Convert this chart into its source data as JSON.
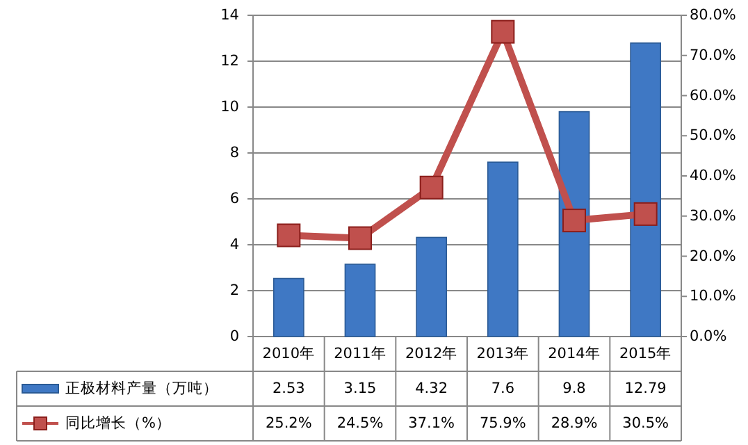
{
  "chart_data": {
    "type": "bar",
    "categories": [
      "2010年",
      "2011年",
      "2012年",
      "2013年",
      "2014年",
      "2015年"
    ],
    "series": [
      {
        "name": "正极材料产量（万吨）",
        "color": "#3f78c4",
        "values": [
          2.53,
          3.15,
          4.32,
          7.6,
          9.8,
          12.79
        ],
        "value_labels": [
          "2.53",
          "3.15",
          "4.32",
          "7.6",
          "9.8",
          "12.79"
        ]
      },
      {
        "name": "同比增长（%）",
        "type": "line",
        "axis": "y2",
        "color": "#c0504d",
        "marker": "square",
        "values": [
          25.2,
          24.5,
          37.1,
          75.9,
          28.9,
          30.5
        ],
        "value_labels": [
          "25.2%",
          "24.5%",
          "37.1%",
          "75.9%",
          "28.9%",
          "30.5%"
        ]
      }
    ],
    "ylim": [
      0,
      14
    ],
    "yticks": [
      0,
      2,
      4,
      6,
      8,
      10,
      12,
      14
    ],
    "y2lim": [
      0,
      80
    ],
    "y2ticks": [
      {
        "value": 0,
        "label": "0.0%"
      },
      {
        "value": 10,
        "label": "10.0%"
      },
      {
        "value": 20,
        "label": "20.0%"
      },
      {
        "value": 30,
        "label": "30.0%"
      },
      {
        "value": 40,
        "label": "40.0%"
      },
      {
        "value": 50,
        "label": "50.0%"
      },
      {
        "value": 60,
        "label": "60.0%"
      },
      {
        "value": 70,
        "label": "70.0%"
      },
      {
        "value": 80,
        "label": "80.0%"
      }
    ],
    "grid": "y",
    "legend": "bottom"
  }
}
